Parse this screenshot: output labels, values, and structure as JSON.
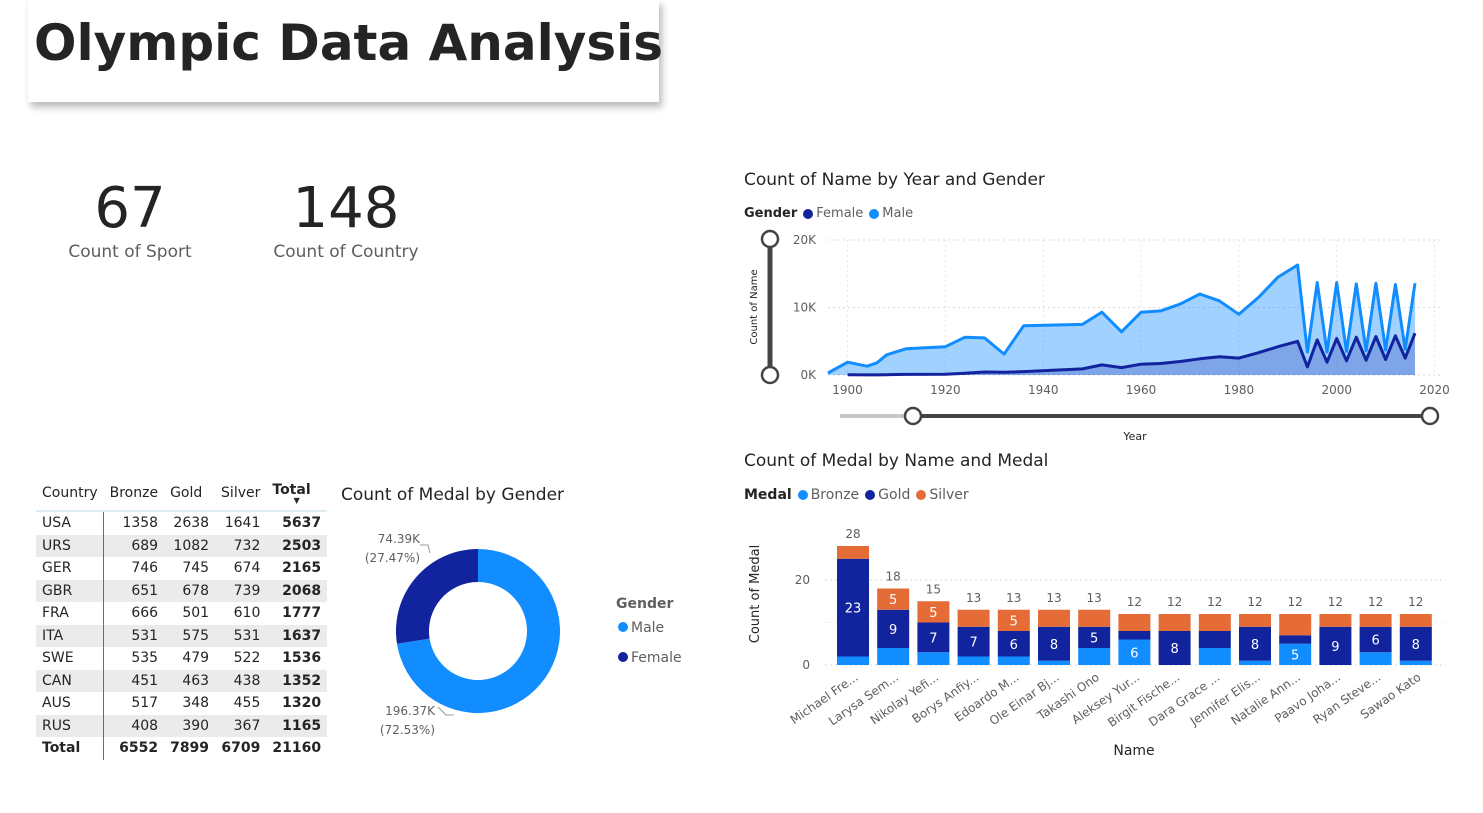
{
  "page": {
    "title": "Olympic Data Analysis",
    "cards": [
      {
        "value": "67",
        "label": "Count of Sport"
      },
      {
        "value": "148",
        "label": "Count of Country"
      }
    ]
  },
  "colors": {
    "dark_blue": "#12239e",
    "light_blue": "#118dff",
    "orange": "#e66c37",
    "text": "#252423",
    "muted": "#605e5c"
  },
  "table": {
    "headers": [
      "Country",
      "Bronze",
      "Gold",
      "Silver",
      "Total"
    ],
    "sort_indicator": "▼",
    "rows": [
      [
        "USA",
        "1358",
        "2638",
        "1641",
        "5637"
      ],
      [
        "URS",
        "689",
        "1082",
        "732",
        "2503"
      ],
      [
        "GER",
        "746",
        "745",
        "674",
        "2165"
      ],
      [
        "GBR",
        "651",
        "678",
        "739",
        "2068"
      ],
      [
        "FRA",
        "666",
        "501",
        "610",
        "1777"
      ],
      [
        "ITA",
        "531",
        "575",
        "531",
        "1637"
      ],
      [
        "SWE",
        "535",
        "479",
        "522",
        "1536"
      ],
      [
        "CAN",
        "451",
        "463",
        "438",
        "1352"
      ],
      [
        "AUS",
        "517",
        "348",
        "455",
        "1320"
      ],
      [
        "RUS",
        "408",
        "390",
        "367",
        "1165"
      ]
    ],
    "total_row": [
      "Total",
      "6552",
      "7899",
      "6709",
      "21160"
    ]
  },
  "chart_data": [
    {
      "type": "area",
      "title": "Count of Name by Year and Gender",
      "legend_title": "Gender",
      "xlabel": "Year",
      "ylabel": "Count of Name",
      "xlim": [
        1896,
        2016
      ],
      "ylim": [
        0,
        20000
      ],
      "x_ticks": [
        "1900",
        "1920",
        "1940",
        "1960",
        "1980",
        "2000",
        "2020"
      ],
      "y_ticks": [
        "0K",
        "10K",
        "20K"
      ],
      "grid": true,
      "legend_position": "top-left",
      "series": [
        {
          "name": "Female",
          "color": "#12239e",
          "x": [
            1900,
            1904,
            1906,
            1908,
            1912,
            1920,
            1924,
            1928,
            1932,
            1936,
            1948,
            1952,
            1956,
            1960,
            1964,
            1968,
            1972,
            1976,
            1980,
            1984,
            1988,
            1992,
            1994,
            1996,
            1998,
            2000,
            2002,
            2004,
            2006,
            2008,
            2010,
            2012,
            2014,
            2016
          ],
          "y": [
            30,
            20,
            20,
            50,
            90,
            120,
            250,
            450,
            400,
            500,
            900,
            1500,
            1100,
            1600,
            1700,
            2000,
            2400,
            2700,
            2500,
            3300,
            4200,
            5000,
            1200,
            5200,
            1900,
            5400,
            2100,
            5600,
            2200,
            5700,
            2300,
            5800,
            2500,
            6200
          ]
        },
        {
          "name": "Male",
          "color": "#118dff",
          "x": [
            1896,
            1900,
            1904,
            1906,
            1908,
            1912,
            1920,
            1924,
            1928,
            1932,
            1936,
            1948,
            1952,
            1956,
            1960,
            1964,
            1968,
            1972,
            1976,
            1980,
            1984,
            1988,
            1992,
            1994,
            1996,
            1998,
            2000,
            2002,
            2004,
            2006,
            2008,
            2010,
            2012,
            2014,
            2016
          ],
          "y": [
            300,
            1900,
            1300,
            1800,
            3000,
            3900,
            4200,
            5600,
            5500,
            3100,
            7300,
            7500,
            9300,
            6400,
            9300,
            9500,
            10500,
            12000,
            11000,
            9000,
            11500,
            14500,
            16300,
            3400,
            13700,
            3400,
            13700,
            3500,
            13500,
            3600,
            13600,
            3700,
            13400,
            3800,
            13600
          ]
        }
      ]
    },
    {
      "type": "pie",
      "title": "Count of Medal by Gender",
      "legend_title": "Gender",
      "legend_position": "right",
      "donut": true,
      "slices": [
        {
          "name": "Male",
          "value": 196370,
          "label": "196.37K",
          "pct": "(72.53%)",
          "color": "#118dff"
        },
        {
          "name": "Female",
          "value": 74390,
          "label": "74.39K",
          "pct": "(27.47%)",
          "color": "#12239e"
        }
      ]
    },
    {
      "type": "bar",
      "stacked": true,
      "title": "Count of Medal by Name and Medal",
      "legend_title": "Medal",
      "xlabel": "Name",
      "ylabel": "Count of Medal",
      "ylim": [
        0,
        30
      ],
      "y_ticks": [
        "0",
        "20"
      ],
      "grid": true,
      "legend_position": "top-left",
      "categories": [
        "Michael Fre...",
        "Larysa Sem...",
        "Nikolay Yefi...",
        "Borys Anfiy...",
        "Edoardo M...",
        "Ole Einar Bj...",
        "Takashi Ono",
        "Aleksey Yur...",
        "Birgit Fische...",
        "Dara Grace ...",
        "Jennifer Elis...",
        "Natalie Ann...",
        "Paavo Joha...",
        "Ryan Steve...",
        "Sawao Kato"
      ],
      "totals": [
        28,
        18,
        15,
        13,
        13,
        13,
        13,
        12,
        12,
        12,
        12,
        12,
        12,
        12,
        12
      ],
      "series": [
        {
          "name": "Bronze",
          "color": "#118dff",
          "values": [
            2,
            4,
            3,
            2,
            2,
            1,
            4,
            6,
            0,
            4,
            1,
            5,
            0,
            3,
            1
          ],
          "labels": [
            "",
            "",
            "",
            "",
            "",
            "",
            "",
            "6",
            "",
            "",
            "",
            "5",
            "",
            "",
            ""
          ]
        },
        {
          "name": "Gold",
          "color": "#12239e",
          "values": [
            23,
            9,
            7,
            7,
            6,
            8,
            5,
            2,
            8,
            4,
            8,
            2,
            9,
            6,
            8
          ],
          "labels": [
            "23",
            "9",
            "7",
            "7",
            "6",
            "8",
            "5",
            "",
            "8",
            "",
            "8",
            "",
            "9",
            "6",
            "8"
          ]
        },
        {
          "name": "Silver",
          "color": "#e66c37",
          "values": [
            3,
            5,
            5,
            4,
            5,
            4,
            4,
            4,
            4,
            4,
            3,
            5,
            3,
            3,
            3
          ],
          "labels": [
            "",
            "5",
            "5",
            "",
            "5",
            "",
            "",
            "",
            "",
            "",
            "",
            "",
            "",
            "",
            ""
          ]
        }
      ]
    }
  ]
}
